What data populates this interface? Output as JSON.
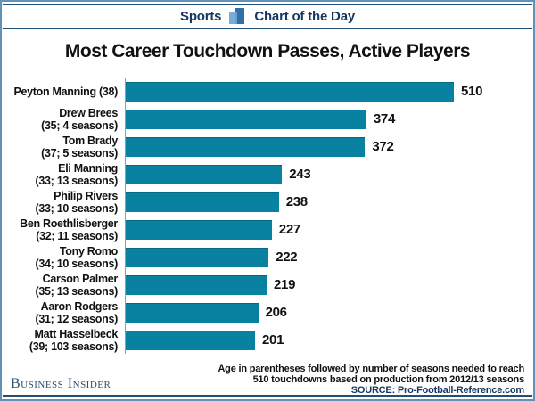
{
  "header": {
    "left_label": "Sports",
    "right_label": "Chart of the Day",
    "icon": "bar-chart-icon"
  },
  "title": "Most Career Touchdown Passes, Active Players",
  "chart_data": {
    "type": "bar",
    "orientation": "horizontal",
    "title": "Most Career Touchdown Passes, Active Players",
    "categories": [
      "Peyton Manning (38)",
      "Drew Brees (35; 4 seasons)",
      "Tom Brady (37; 5 seasons)",
      "Eli Manning (33; 13 seasons)",
      "Philip Rivers (33; 10 seasons)",
      "Ben Roethlisberger (32; 11 seasons)",
      "Tony Romo (34; 10 seasons)",
      "Carson Palmer (35; 13 seasons)",
      "Aaron Rodgers (31; 12 seasons)",
      "Matt Hasselbeck (39; 103 seasons)"
    ],
    "values": [
      510,
      374,
      372,
      243,
      238,
      227,
      222,
      219,
      206,
      201
    ],
    "xlim": [
      0,
      510
    ],
    "value_labels": true,
    "grid": false,
    "legend": false,
    "bar_color": "#0981a1",
    "rows": [
      {
        "label_lines": [
          "Peyton Manning (38)"
        ],
        "value": 510
      },
      {
        "label_lines": [
          "Drew Brees",
          "(35; 4 seasons)"
        ],
        "value": 374
      },
      {
        "label_lines": [
          "Tom Brady",
          "(37; 5 seasons)"
        ],
        "value": 372
      },
      {
        "label_lines": [
          "Eli Manning",
          "(33; 13 seasons)"
        ],
        "value": 243
      },
      {
        "label_lines": [
          "Philip Rivers",
          "(33; 10 seasons)"
        ],
        "value": 238
      },
      {
        "label_lines": [
          "Ben Roethlisberger",
          "(32; 11 seasons)"
        ],
        "value": 227
      },
      {
        "label_lines": [
          "Tony Romo",
          "(34; 10 seasons)"
        ],
        "value": 222
      },
      {
        "label_lines": [
          "Carson Palmer",
          "(35; 13 seasons)"
        ],
        "value": 219
      },
      {
        "label_lines": [
          "Aaron Rodgers",
          "(31; 12 seasons)"
        ],
        "value": 206
      },
      {
        "label_lines": [
          "Matt Hasselbeck",
          "(39; 103 seasons)"
        ],
        "value": 201
      }
    ]
  },
  "footer": {
    "note_line1": "Age in parentheses followed by number of seasons needed to reach",
    "note_line2": "510 touchdowns based on production from 2012/13 seasons",
    "source": "SOURCE: Pro-Football-Reference.com",
    "brand": "Business Insider"
  },
  "colors": {
    "bar": "#0981a1",
    "rule_navy": "#1f4e79",
    "frame_border": "#6191b4",
    "header_text": "#17375e",
    "brand_text": "#2f4f6f",
    "source_text": "#17375e",
    "icon_light_blue": "#6ea5d2",
    "icon_dark_blue": "#2f6fad"
  }
}
